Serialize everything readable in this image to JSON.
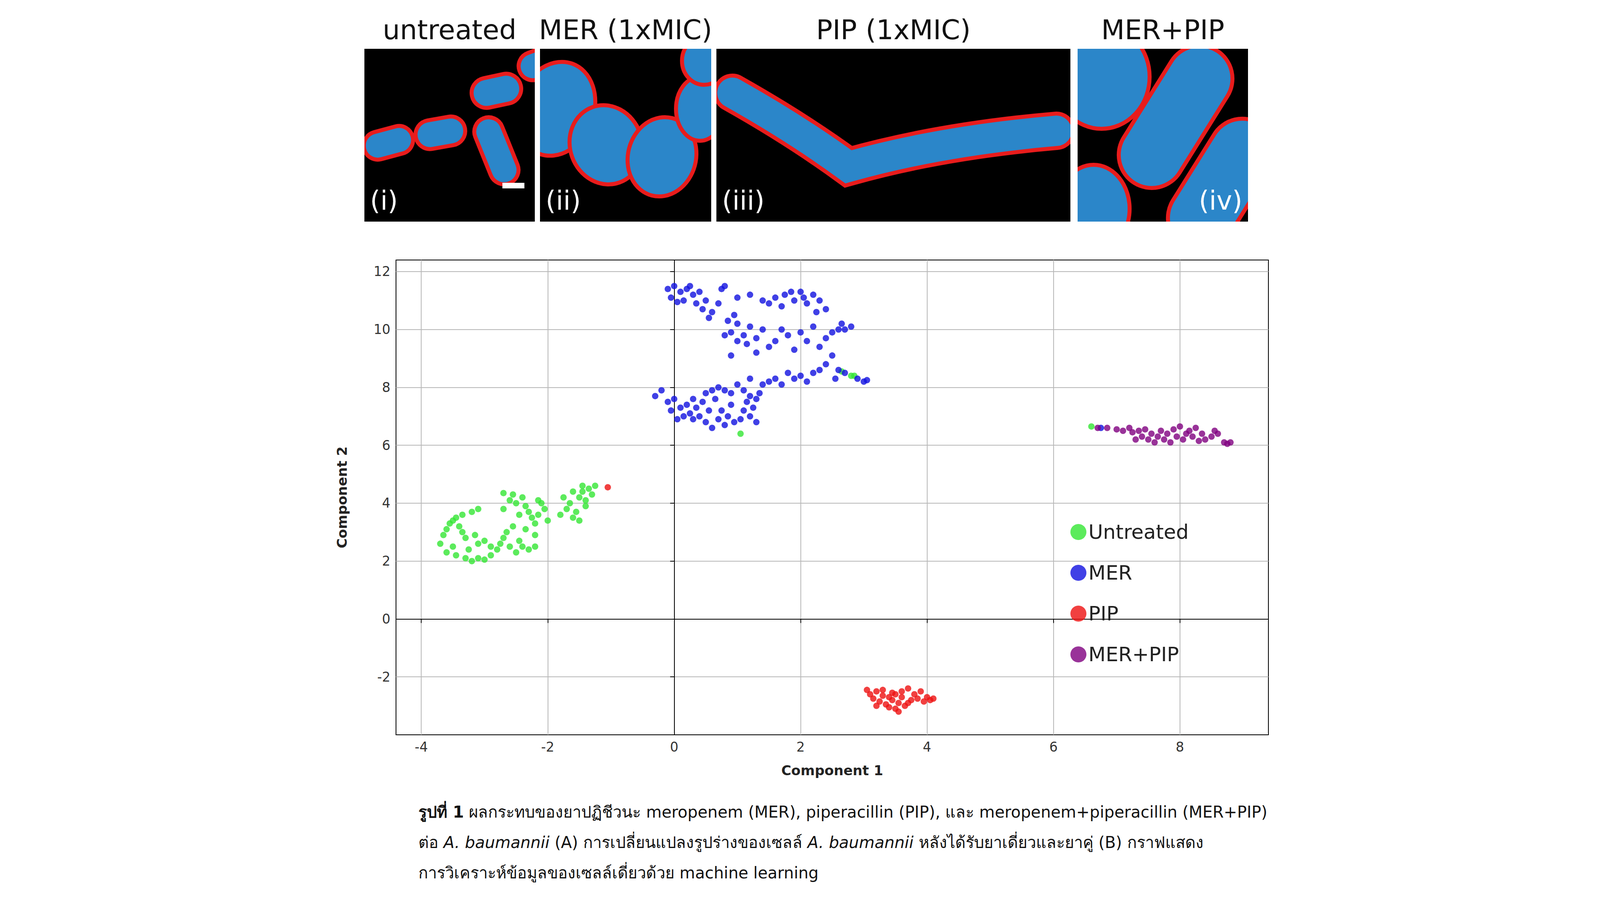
{
  "figure": {
    "panels": [
      {
        "title": "untreated",
        "tag": "(i)"
      },
      {
        "title": "MER (1xMIC)",
        "tag": "(ii)"
      },
      {
        "title": "PIP (1xMIC)",
        "tag": "(iii)"
      },
      {
        "title": "MER+PIP",
        "tag": "(iv)"
      }
    ]
  },
  "chart_data": {
    "type": "scatter",
    "xlabel": "Component 1",
    "ylabel": "Component 2",
    "xlim": [
      -4.4,
      9.4
    ],
    "ylim": [
      -4.0,
      12.4
    ],
    "xticks": [
      -4,
      -2,
      0,
      2,
      4,
      6,
      8
    ],
    "yticks": [
      -2,
      0,
      2,
      4,
      6,
      8,
      10,
      12
    ],
    "grid": true,
    "legend": "right",
    "marker": "circle",
    "series": [
      {
        "name": "Untreated",
        "color": "#33e633",
        "values": [
          [
            -3.7,
            2.6
          ],
          [
            -3.65,
            2.9
          ],
          [
            -3.6,
            3.1
          ],
          [
            -3.55,
            3.3
          ],
          [
            -3.5,
            3.4
          ],
          [
            -3.45,
            3.5
          ],
          [
            -3.4,
            3.2
          ],
          [
            -3.35,
            3.0
          ],
          [
            -3.3,
            2.8
          ],
          [
            -3.5,
            2.5
          ],
          [
            -3.6,
            2.3
          ],
          [
            -3.45,
            2.2
          ],
          [
            -3.3,
            2.1
          ],
          [
            -3.2,
            2.0
          ],
          [
            -3.1,
            2.1
          ],
          [
            -3.0,
            2.05
          ],
          [
            -2.9,
            2.2
          ],
          [
            -3.25,
            2.4
          ],
          [
            -3.1,
            2.6
          ],
          [
            -3.0,
            2.7
          ],
          [
            -2.9,
            2.5
          ],
          [
            -2.8,
            2.4
          ],
          [
            -2.75,
            2.6
          ],
          [
            -2.7,
            2.8
          ],
          [
            -3.15,
            2.9
          ],
          [
            -3.2,
            3.7
          ],
          [
            -3.1,
            3.8
          ],
          [
            -3.35,
            3.6
          ],
          [
            -2.6,
            2.5
          ],
          [
            -2.5,
            2.3
          ],
          [
            -2.4,
            2.5
          ],
          [
            -2.3,
            2.4
          ],
          [
            -2.2,
            2.5
          ],
          [
            -2.45,
            2.7
          ],
          [
            -2.65,
            3.0
          ],
          [
            -2.55,
            3.2
          ],
          [
            -2.7,
            3.8
          ],
          [
            -2.6,
            4.1
          ],
          [
            -2.55,
            4.3
          ],
          [
            -2.5,
            4.0
          ],
          [
            -2.4,
            4.2
          ],
          [
            -2.35,
            3.9
          ],
          [
            -2.3,
            3.7
          ],
          [
            -2.25,
            3.5
          ],
          [
            -2.2,
            3.3
          ],
          [
            -2.15,
            3.6
          ],
          [
            -2.1,
            4.0
          ],
          [
            -2.05,
            3.8
          ],
          [
            -2.0,
            3.4
          ],
          [
            -2.15,
            4.1
          ],
          [
            -2.45,
            3.6
          ],
          [
            -2.7,
            4.35
          ],
          [
            -2.2,
            2.9
          ],
          [
            -2.35,
            3.1
          ],
          [
            -1.8,
            3.6
          ],
          [
            -1.7,
            3.8
          ],
          [
            -1.65,
            4.0
          ],
          [
            -1.6,
            3.5
          ],
          [
            -1.55,
            3.7
          ],
          [
            -1.5,
            4.2
          ],
          [
            -1.45,
            4.4
          ],
          [
            -1.4,
            4.1
          ],
          [
            -1.35,
            4.5
          ],
          [
            -1.3,
            4.3
          ],
          [
            -1.25,
            4.6
          ],
          [
            -1.5,
            3.4
          ],
          [
            -1.75,
            4.2
          ],
          [
            -1.4,
            3.9
          ],
          [
            -1.6,
            4.4
          ],
          [
            -1.45,
            4.6
          ],
          [
            1.05,
            6.4
          ],
          [
            2.65,
            8.55
          ],
          [
            2.8,
            8.4
          ],
          [
            2.85,
            8.4
          ],
          [
            6.6,
            6.65
          ]
        ]
      },
      {
        "name": "MER",
        "color": "#1010e0",
        "values": [
          [
            -0.1,
            11.4
          ],
          [
            0,
            11.5
          ],
          [
            0.1,
            11.3
          ],
          [
            -0.05,
            11.1
          ],
          [
            0.15,
            11.0
          ],
          [
            0.2,
            11.4
          ],
          [
            0.3,
            11.2
          ],
          [
            0.35,
            10.9
          ],
          [
            0.05,
            10.95
          ],
          [
            0.25,
            11.5
          ],
          [
            0.4,
            11.3
          ],
          [
            0.5,
            11.0
          ],
          [
            0.45,
            10.7
          ],
          [
            0.6,
            10.6
          ],
          [
            0.55,
            10.4
          ],
          [
            0.75,
            11.4
          ],
          [
            0.8,
            11.5
          ],
          [
            0.7,
            10.9
          ],
          [
            0.85,
            10.3
          ],
          [
            1.0,
            10.2
          ],
          [
            0.9,
            9.9
          ],
          [
            1.1,
            9.8
          ],
          [
            1.2,
            10.1
          ],
          [
            1.3,
            9.7
          ],
          [
            1.0,
            9.6
          ],
          [
            1.4,
            10.0
          ],
          [
            0.8,
            9.8
          ],
          [
            1.15,
            9.5
          ],
          [
            0.95,
            10.5
          ],
          [
            1.5,
            9.4
          ],
          [
            1.6,
            9.6
          ],
          [
            1.7,
            10.0
          ],
          [
            1.8,
            9.8
          ],
          [
            2.0,
            9.9
          ],
          [
            2.2,
            10.1
          ],
          [
            2.4,
            9.7
          ],
          [
            2.5,
            9.9
          ],
          [
            2.1,
            9.6
          ],
          [
            1.9,
            9.3
          ],
          [
            2.3,
            9.4
          ],
          [
            2.6,
            10.0
          ],
          [
            2.65,
            10.2
          ],
          [
            2.7,
            10.0
          ],
          [
            2.8,
            10.1
          ],
          [
            1.3,
            9.2
          ],
          [
            0.9,
            9.1
          ],
          [
            1.4,
            11.0
          ],
          [
            1.5,
            10.9
          ],
          [
            1.6,
            11.1
          ],
          [
            1.7,
            10.8
          ],
          [
            1.75,
            11.2
          ],
          [
            1.85,
            11.3
          ],
          [
            1.9,
            11.0
          ],
          [
            2.0,
            11.3
          ],
          [
            2.05,
            11.1
          ],
          [
            2.1,
            10.9
          ],
          [
            2.2,
            11.2
          ],
          [
            2.3,
            11.0
          ],
          [
            2.4,
            10.7
          ],
          [
            2.25,
            10.6
          ],
          [
            1.2,
            11.2
          ],
          [
            1.0,
            11.1
          ],
          [
            2.5,
            9.1
          ],
          [
            2.4,
            8.8
          ],
          [
            2.6,
            8.6
          ],
          [
            2.7,
            8.5
          ],
          [
            2.9,
            8.3
          ],
          [
            3.0,
            8.2
          ],
          [
            3.05,
            8.25
          ],
          [
            2.55,
            8.3
          ],
          [
            2.3,
            8.6
          ],
          [
            2.2,
            8.5
          ],
          [
            2.0,
            8.4
          ],
          [
            1.9,
            8.3
          ],
          [
            1.8,
            8.5
          ],
          [
            2.1,
            8.2
          ],
          [
            1.7,
            8.1
          ],
          [
            1.6,
            8.3
          ],
          [
            1.5,
            8.2
          ],
          [
            1.4,
            8.1
          ],
          [
            1.2,
            8.3
          ],
          [
            1.1,
            7.9
          ],
          [
            1.0,
            8.1
          ],
          [
            0.9,
            7.8
          ],
          [
            0.8,
            7.9
          ],
          [
            0.7,
            8.0
          ],
          [
            0.6,
            7.9
          ],
          [
            0.65,
            7.6
          ],
          [
            -0.3,
            7.7
          ],
          [
            -0.1,
            7.5
          ],
          [
            -0.05,
            7.2
          ],
          [
            0.0,
            7.6
          ],
          [
            0.1,
            7.3
          ],
          [
            0.15,
            7.0
          ],
          [
            0.2,
            7.4
          ],
          [
            0.25,
            7.1
          ],
          [
            0.3,
            7.6
          ],
          [
            0.35,
            7.3
          ],
          [
            0.4,
            7.0
          ],
          [
            0.45,
            7.5
          ],
          [
            0.5,
            6.8
          ],
          [
            0.55,
            7.2
          ],
          [
            0.6,
            6.6
          ],
          [
            0.7,
            6.9
          ],
          [
            0.75,
            7.2
          ],
          [
            0.8,
            6.7
          ],
          [
            0.85,
            7.0
          ],
          [
            0.9,
            7.4
          ],
          [
            0.95,
            6.8
          ],
          [
            1.05,
            6.9
          ],
          [
            1.1,
            7.2
          ],
          [
            1.15,
            7.5
          ],
          [
            1.2,
            7.0
          ],
          [
            1.25,
            7.3
          ],
          [
            1.3,
            6.8
          ],
          [
            1.3,
            7.6
          ],
          [
            1.35,
            7.8
          ],
          [
            1.2,
            7.7
          ],
          [
            0.5,
            7.8
          ],
          [
            -0.2,
            7.9
          ],
          [
            0.05,
            6.9
          ],
          [
            0.3,
            6.9
          ],
          [
            6.75,
            6.6
          ]
        ]
      },
      {
        "name": "PIP",
        "color": "#ee1010",
        "values": [
          [
            3.05,
            -2.45
          ],
          [
            3.1,
            -2.6
          ],
          [
            3.15,
            -2.75
          ],
          [
            3.2,
            -2.5
          ],
          [
            3.25,
            -2.85
          ],
          [
            3.3,
            -2.65
          ],
          [
            3.35,
            -2.95
          ],
          [
            3.4,
            -3.05
          ],
          [
            3.45,
            -2.8
          ],
          [
            3.5,
            -2.6
          ],
          [
            3.5,
            -3.1
          ],
          [
            3.55,
            -2.9
          ],
          [
            3.6,
            -2.5
          ],
          [
            3.6,
            -2.7
          ],
          [
            3.65,
            -3.0
          ],
          [
            3.7,
            -2.4
          ],
          [
            3.75,
            -2.8
          ],
          [
            3.8,
            -2.6
          ],
          [
            3.85,
            -2.75
          ],
          [
            3.9,
            -2.5
          ],
          [
            3.95,
            -2.85
          ],
          [
            4.0,
            -2.7
          ],
          [
            4.05,
            -2.8
          ],
          [
            3.3,
            -2.45
          ],
          [
            3.2,
            -3.0
          ],
          [
            3.45,
            -2.55
          ],
          [
            3.55,
            -3.2
          ],
          [
            3.4,
            -2.7
          ],
          [
            3.7,
            -2.9
          ],
          [
            4.1,
            -2.75
          ],
          [
            -1.05,
            4.55
          ]
        ]
      },
      {
        "name": "MER+PIP",
        "color": "#800080",
        "values": [
          [
            6.7,
            6.6
          ],
          [
            6.85,
            6.6
          ],
          [
            7.0,
            6.55
          ],
          [
            7.1,
            6.5
          ],
          [
            7.2,
            6.6
          ],
          [
            7.25,
            6.45
          ],
          [
            7.35,
            6.5
          ],
          [
            7.4,
            6.3
          ],
          [
            7.45,
            6.55
          ],
          [
            7.5,
            6.2
          ],
          [
            7.55,
            6.4
          ],
          [
            7.6,
            6.1
          ],
          [
            7.65,
            6.3
          ],
          [
            7.7,
            6.5
          ],
          [
            7.75,
            6.2
          ],
          [
            7.8,
            6.4
          ],
          [
            7.85,
            6.1
          ],
          [
            7.9,
            6.55
          ],
          [
            7.95,
            6.3
          ],
          [
            8.0,
            6.65
          ],
          [
            8.05,
            6.2
          ],
          [
            8.1,
            6.4
          ],
          [
            8.15,
            6.5
          ],
          [
            8.2,
            6.3
          ],
          [
            8.25,
            6.6
          ],
          [
            8.3,
            6.15
          ],
          [
            8.35,
            6.4
          ],
          [
            8.4,
            6.2
          ],
          [
            8.5,
            6.3
          ],
          [
            8.55,
            6.5
          ],
          [
            8.6,
            6.4
          ],
          [
            8.7,
            6.1
          ],
          [
            8.75,
            6.05
          ],
          [
            8.8,
            6.1
          ],
          [
            7.3,
            6.2
          ]
        ]
      }
    ]
  },
  "caption": {
    "lines": [
      [
        {
          "text": "รูปที่ 1",
          "bold": true
        },
        {
          "text": " ผลกระทบของยาปฏิชีวนะ meropenem (MER), piperacillin (PIP), และ meropenem+piperacillin (MER+PIP)"
        }
      ],
      [
        {
          "text": "ต่อ "
        },
        {
          "text": "A. baumannii",
          "italic": true
        },
        {
          "text": " (A) การเปลี่ยนแปลงรูปร่างของเซลล์ "
        },
        {
          "text": "A. baumannii",
          "italic": true
        },
        {
          "text": " หลังได้รับยาเดี่ยวและยาคู่ (B) กราฟแสดง"
        }
      ],
      [
        {
          "text": "การวิเคราะห์ข้อมูลของเซลล์เดี่ยวด้วย machine learning"
        }
      ]
    ]
  }
}
